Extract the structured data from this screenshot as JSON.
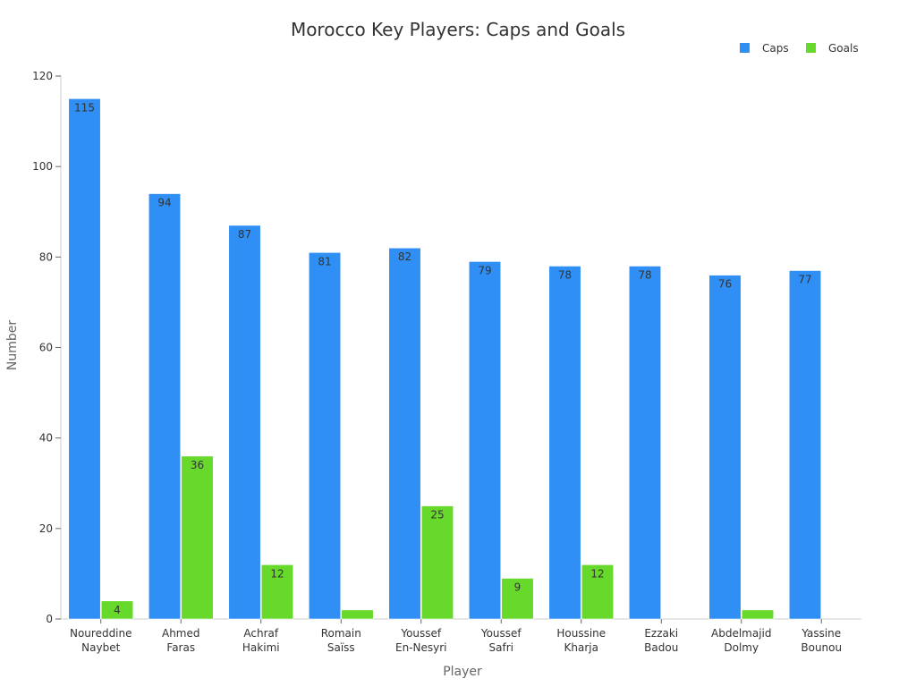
{
  "chart_data": {
    "type": "bar",
    "title": "Morocco Key Players: Caps and Goals",
    "xlabel": "Player",
    "ylabel": "Number",
    "categories": [
      [
        "Noureddine",
        "Naybet"
      ],
      [
        "Ahmed",
        "Faras"
      ],
      [
        "Achraf",
        "Hakimi"
      ],
      [
        "Romain",
        "Saïss"
      ],
      [
        "Youssef",
        "En-Nesyri"
      ],
      [
        "Youssef",
        "Safri"
      ],
      [
        "Houssine",
        "Kharja"
      ],
      [
        "Ezzaki",
        "Badou"
      ],
      [
        "Abdelmajid",
        "Dolmy"
      ],
      [
        "Yassine",
        "Bounou"
      ]
    ],
    "series": [
      {
        "name": "Caps",
        "color": "#2f8ff5",
        "values": [
          115,
          94,
          87,
          81,
          82,
          79,
          78,
          78,
          76,
          77
        ],
        "labels": [
          "115",
          "94",
          "87",
          "81",
          "82",
          "79",
          "78",
          "78",
          "76",
          "77"
        ]
      },
      {
        "name": "Goals",
        "color": "#66d92a",
        "values": [
          4,
          36,
          12,
          2,
          25,
          9,
          12,
          0,
          2,
          0
        ],
        "labels": [
          "4",
          "36",
          "12",
          "",
          "25",
          "9",
          "12",
          "",
          "",
          ""
        ]
      }
    ],
    "ylim": [
      0,
      120
    ],
    "yticks": [
      0,
      20,
      40,
      60,
      80,
      100,
      120
    ],
    "grid": false,
    "legend_position": "top-right"
  }
}
